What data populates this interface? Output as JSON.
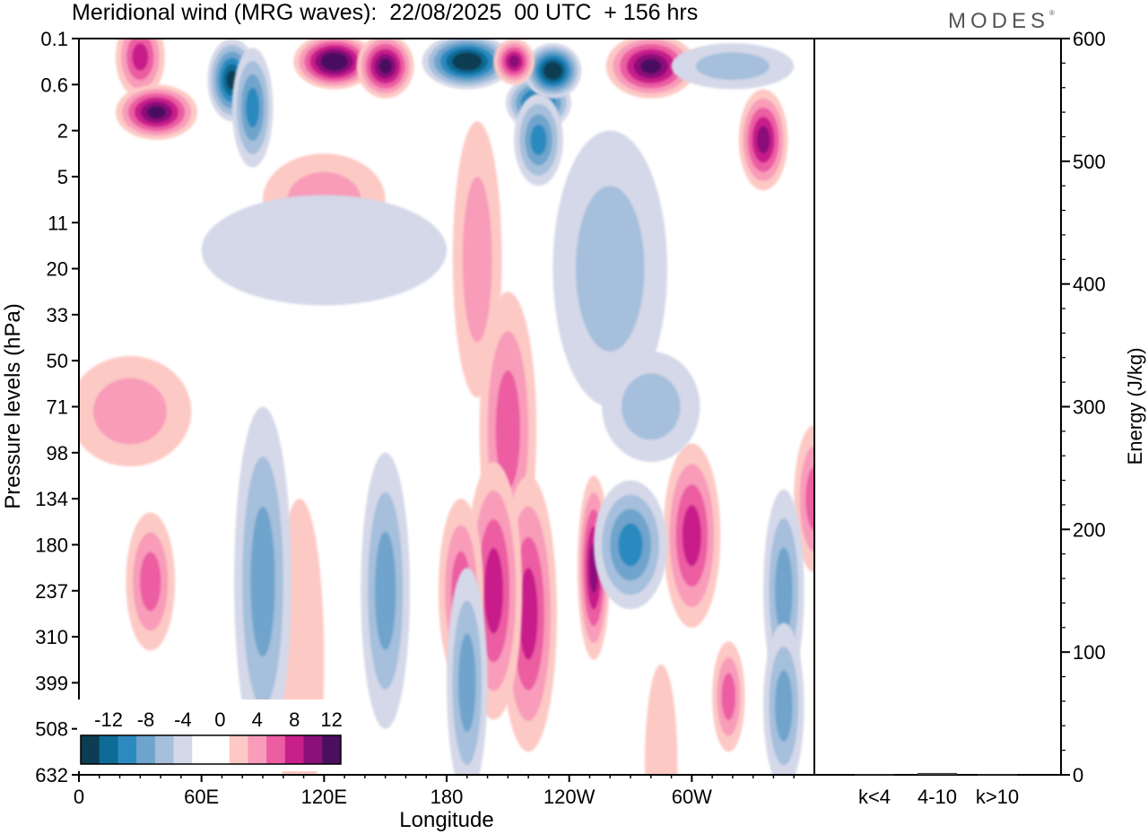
{
  "title": "Meridional wind (MRG waves):  22/08/2025  00 UTC  + 156 hrs",
  "logo": "MODES",
  "logo_mark": "®",
  "chart_data": [
    {
      "type": "heatmap",
      "title": "Meridional wind (MRG waves)",
      "xlabel": "Longitude",
      "ylabel": "Pressure levels (hPa)",
      "x_ticks": [
        {
          "lon": 0,
          "label": "0"
        },
        {
          "lon": 60,
          "label": "60E"
        },
        {
          "lon": 120,
          "label": "120E"
        },
        {
          "lon": 180,
          "label": "180"
        },
        {
          "lon": 240,
          "label": "120W"
        },
        {
          "lon": 300,
          "label": "60W"
        }
      ],
      "xlim": [
        0,
        360
      ],
      "y_levels": [
        "0.1",
        "0.6",
        "2",
        "5",
        "11",
        "20",
        "33",
        "50",
        "71",
        "98",
        "134",
        "180",
        "237",
        "310",
        "399",
        "508",
        "632"
      ],
      "colorbar": {
        "labels": [
          "-12",
          "-8",
          "-4",
          "0",
          "4",
          "8",
          "12"
        ],
        "colors": [
          "#0d3d52",
          "#0f6b95",
          "#2c8ac0",
          "#6fa4cc",
          "#a5bfdc",
          "#d4d8e8",
          "#ffffff",
          "#ffffff",
          "#fdc9c4",
          "#f89cba",
          "#ec5da2",
          "#c81f8b",
          "#8b0f79",
          "#4a0f5e"
        ],
        "boundaries": [
          -14,
          -12,
          -10,
          -8,
          -6,
          -4,
          -2,
          0,
          2,
          4,
          6,
          8,
          10,
          12,
          14
        ]
      },
      "features": [
        {
          "lon": 30,
          "level": 0.4,
          "value": 9,
          "width": 12,
          "height": 0.9
        },
        {
          "lon": 38,
          "level": 1.6,
          "value": 12,
          "width": 20,
          "height": 0.6
        },
        {
          "lon": 75,
          "level": 0.9,
          "value": -12,
          "width": 12,
          "height": 0.9
        },
        {
          "lon": 85,
          "level": 1.5,
          "value": -9,
          "width": 10,
          "height": 1.3
        },
        {
          "lon": 125,
          "level": 0.5,
          "value": 14,
          "width": 20,
          "height": 0.6
        },
        {
          "lon": 150,
          "level": 0.6,
          "value": 12,
          "width": 14,
          "height": 0.7
        },
        {
          "lon": 190,
          "level": 0.5,
          "value": -14,
          "width": 22,
          "height": 0.6
        },
        {
          "lon": 225,
          "level": 1.4,
          "value": -12,
          "width": 16,
          "height": 0.6
        },
        {
          "lon": 232,
          "level": 0.7,
          "value": -14,
          "width": 14,
          "height": 0.6
        },
        {
          "lon": 213,
          "level": 0.5,
          "value": 10,
          "width": 10,
          "height": 0.5
        },
        {
          "lon": 225,
          "level": 2.2,
          "value": -8,
          "width": 12,
          "height": 1.0
        },
        {
          "lon": 280,
          "level": 0.6,
          "value": 13,
          "width": 22,
          "height": 0.7
        },
        {
          "lon": 335,
          "level": 2.2,
          "value": 10,
          "width": 12,
          "height": 1.1
        },
        {
          "lon": 120,
          "level": 3.5,
          "value": 4,
          "width": 30,
          "height": 1.0
        },
        {
          "lon": 195,
          "level": 4.8,
          "value": 5,
          "width": 12,
          "height": 3.0
        },
        {
          "lon": 210,
          "level": 8.5,
          "value": 6,
          "width": 14,
          "height": 3.0
        },
        {
          "lon": 220,
          "level": 12.5,
          "value": 8,
          "width": 14,
          "height": 3.0
        },
        {
          "lon": 203,
          "level": 12.0,
          "value": 8,
          "width": 14,
          "height": 2.8
        },
        {
          "lon": 252,
          "level": 11.5,
          "value": 10,
          "width": 8,
          "height": 2.0
        },
        {
          "lon": 187,
          "level": 12.0,
          "value": 7,
          "width": 11,
          "height": 2.0
        },
        {
          "lon": 300,
          "level": 10.8,
          "value": 9,
          "width": 14,
          "height": 2.0
        },
        {
          "lon": 360,
          "level": 10.0,
          "value": 6,
          "width": 10,
          "height": 1.6
        },
        {
          "lon": 35,
          "level": 11.8,
          "value": 6,
          "width": 12,
          "height": 1.5
        },
        {
          "lon": 25,
          "level": 8.1,
          "value": 5,
          "width": 30,
          "height": 1.2
        },
        {
          "lon": 318,
          "level": 14.3,
          "value": 6,
          "width": 8,
          "height": 1.2
        },
        {
          "lon": 108,
          "level": 13.5,
          "value": 3,
          "width": 12,
          "height": 3.5
        },
        {
          "lon": 285,
          "level": 15.8,
          "value": 3,
          "width": 8,
          "height": 2.2
        },
        {
          "lon": 90,
          "level": 11.8,
          "value": -6,
          "width": 14,
          "height": 3.8
        },
        {
          "lon": 150,
          "level": 12.0,
          "value": -6,
          "width": 12,
          "height": 3.0
        },
        {
          "lon": 190,
          "level": 14.0,
          "value": -6,
          "width": 10,
          "height": 2.5
        },
        {
          "lon": 270,
          "level": 11.0,
          "value": -8,
          "width": 18,
          "height": 1.4
        },
        {
          "lon": 345,
          "level": 12.0,
          "value": -7,
          "width": 10,
          "height": 2.2
        },
        {
          "lon": 345,
          "level": 14.5,
          "value": -6,
          "width": 10,
          "height": 1.8
        },
        {
          "lon": 260,
          "level": 5.0,
          "value": -5,
          "width": 28,
          "height": 3.0
        },
        {
          "lon": 280,
          "level": 8.0,
          "value": -5,
          "width": 24,
          "height": 1.2
        },
        {
          "lon": 120,
          "level": 4.6,
          "value": -3,
          "width": 60,
          "height": 1.2
        },
        {
          "lon": 320,
          "level": 0.6,
          "value": -4,
          "width": 30,
          "height": 0.5
        }
      ]
    },
    {
      "type": "bar",
      "ylabel": "Energy (J/kg)",
      "categories": [
        "k<4",
        "4-10",
        "k>10"
      ],
      "values": [
        0.5,
        1.5,
        0.5
      ],
      "ylim": [
        0,
        600
      ],
      "y_ticks": [
        0,
        100,
        200,
        300,
        400,
        500,
        600
      ]
    }
  ]
}
